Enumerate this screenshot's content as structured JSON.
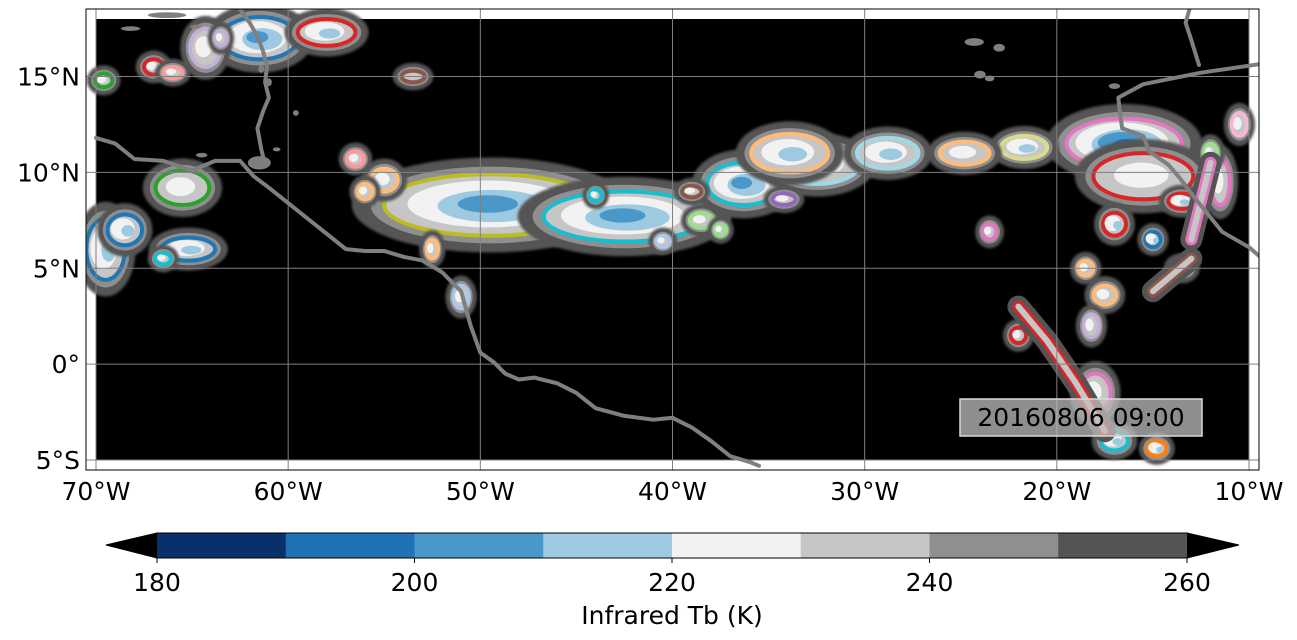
{
  "map": {
    "timestamp": "20160806 09:00",
    "background_color": "#000000",
    "coastline_color": "#7f7f7f",
    "grid_color": "#808080",
    "lon_ticks": [
      {
        "value": -70,
        "label": "70°W"
      },
      {
        "value": -60,
        "label": "60°W"
      },
      {
        "value": -50,
        "label": "50°W"
      },
      {
        "value": -40,
        "label": "40°W"
      },
      {
        "value": -30,
        "label": "30°W"
      },
      {
        "value": -20,
        "label": "20°W"
      },
      {
        "value": -10,
        "label": "10°W"
      }
    ],
    "lat_ticks": [
      {
        "value": 15,
        "label": "15°N"
      },
      {
        "value": 10,
        "label": "10°N"
      },
      {
        "value": 5,
        "label": "5°N"
      },
      {
        "value": 0,
        "label": "0°"
      },
      {
        "value": -5,
        "label": "5°S"
      }
    ],
    "extent": {
      "lon_min": -70,
      "lon_max": -10,
      "lat_min": -5,
      "lat_max": 18
    }
  },
  "colorbar": {
    "label": "Infrared Tb (K)",
    "levels": [
      180,
      190,
      200,
      210,
      220,
      230,
      240,
      250,
      260
    ],
    "colors": [
      "#08306b",
      "#2171b5",
      "#4a98c9",
      "#9ecae1",
      "#f2f2f2",
      "#c6c6c6",
      "#8f8f8f",
      "#545454"
    ],
    "under_color": "#000000",
    "over_color": "#000000",
    "tick_labels": [
      {
        "value": 180,
        "label": "180"
      },
      {
        "value": 200,
        "label": "200"
      },
      {
        "value": 220,
        "label": "220"
      },
      {
        "value": 240,
        "label": "240"
      },
      {
        "value": 260,
        "label": "260"
      }
    ]
  },
  "systems": [
    {
      "lon": -49.5,
      "lat": 8.3,
      "rx": 5.5,
      "ry": 1.6,
      "outline": "#bcbd22",
      "core": 200
    },
    {
      "lon": -42.5,
      "lat": 7.7,
      "rx": 4.2,
      "ry": 1.3,
      "outline": "#17becf",
      "core": 205
    },
    {
      "lon": -36.3,
      "lat": 9.4,
      "rx": 1.9,
      "ry": 1.1,
      "outline": "#17becf",
      "core": 200
    },
    {
      "lon": -32.5,
      "lat": 10.4,
      "rx": 2.2,
      "ry": 1.0,
      "outline": "#9edae5",
      "core": 215
    },
    {
      "lon": -33.9,
      "lat": 11.0,
      "rx": 2.0,
      "ry": 1.0,
      "outline": "#ffbb78",
      "core": 215
    },
    {
      "lon": -28.8,
      "lat": 11.0,
      "rx": 1.6,
      "ry": 0.8,
      "outline": "#9edae5",
      "core": 210
    },
    {
      "lon": -16.5,
      "lat": 11.5,
      "rx": 3.0,
      "ry": 1.3,
      "outline": "#e377c2",
      "core": 195
    },
    {
      "lon": -15.5,
      "lat": 9.8,
      "rx": 2.6,
      "ry": 1.2,
      "outline": "#d62728",
      "core": 220
    },
    {
      "lon": -21.7,
      "lat": 11.3,
      "rx": 1.2,
      "ry": 0.6,
      "outline": "#dbdb8d",
      "core": 215
    },
    {
      "lon": -24.8,
      "lat": 11.0,
      "rx": 1.3,
      "ry": 0.6,
      "outline": "#ffbb78",
      "core": 220
    },
    {
      "lon": -65.5,
      "lat": 9.2,
      "rx": 1.4,
      "ry": 0.9,
      "outline": "#2ca02c",
      "core": 220
    },
    {
      "lon": -65.2,
      "lat": 6.0,
      "rx": 1.4,
      "ry": 0.6,
      "outline": "#1f77b4",
      "core": 215
    },
    {
      "lon": -69.5,
      "lat": 6.0,
      "rx": 1.0,
      "ry": 1.6,
      "outline": "#1f77b4",
      "core": 210
    },
    {
      "lon": -68.5,
      "lat": 7.0,
      "rx": 0.9,
      "ry": 0.8,
      "outline": "#1f77b4",
      "core": 215
    },
    {
      "lon": -61.5,
      "lat": 17.0,
      "rx": 2.0,
      "ry": 1.1,
      "outline": "#1f77b4",
      "core": 205
    },
    {
      "lon": -58.0,
      "lat": 17.3,
      "rx": 1.5,
      "ry": 0.7,
      "outline": "#d62728",
      "core": 210
    },
    {
      "lon": -64.3,
      "lat": 16.5,
      "rx": 0.8,
      "ry": 1.0,
      "outline": "#c5b0d5",
      "core": 225
    },
    {
      "lon": -55.0,
      "lat": 9.6,
      "rx": 0.7,
      "ry": 0.6,
      "outline": "#ffbb78",
      "core": 225
    },
    {
      "lon": -56.5,
      "lat": 10.7,
      "rx": 0.45,
      "ry": 0.4,
      "outline": "#ff9896",
      "core": 225
    },
    {
      "lon": -38.5,
      "lat": 7.5,
      "rx": 0.6,
      "ry": 0.4,
      "outline": "#98df8a",
      "core": 225
    },
    {
      "lon": -34.2,
      "lat": 8.6,
      "rx": 0.6,
      "ry": 0.3,
      "outline": "#9467bd",
      "core": 225
    },
    {
      "lon": -17.0,
      "lat": 7.3,
      "rx": 0.6,
      "ry": 0.6,
      "outline": "#d62728",
      "core": 215
    },
    {
      "lon": -13.5,
      "lat": 8.5,
      "rx": 0.7,
      "ry": 0.4,
      "outline": "#d62728",
      "core": 215
    },
    {
      "lon": -11.5,
      "lat": 9.5,
      "rx": 0.5,
      "ry": 1.2,
      "outline": "#e377c2",
      "core": 225
    },
    {
      "lon": -18.0,
      "lat": -1.5,
      "rx": 0.8,
      "ry": 1.0,
      "outline": "#e377c2",
      "core": 225
    },
    {
      "lon": -17.0,
      "lat": -4.0,
      "rx": 0.7,
      "ry": 0.5,
      "outline": "#17becf",
      "core": 215
    },
    {
      "lon": -14.8,
      "lat": -4.4,
      "rx": 0.5,
      "ry": 0.4,
      "outline": "#ff7f0e",
      "core": 215
    },
    {
      "lon": -17.5,
      "lat": 3.6,
      "rx": 0.6,
      "ry": 0.5,
      "outline": "#ffbb78",
      "core": 225
    },
    {
      "lon": -18.5,
      "lat": 5.0,
      "rx": 0.4,
      "ry": 0.4,
      "outline": "#ffbb78",
      "core": 225
    },
    {
      "lon": -18.2,
      "lat": 2.0,
      "rx": 0.4,
      "ry": 0.6,
      "outline": "#c5b0d5",
      "core": 225
    },
    {
      "lon": -15.0,
      "lat": 6.5,
      "rx": 0.4,
      "ry": 0.4,
      "outline": "#1f77b4",
      "core": 215
    },
    {
      "lon": -23.5,
      "lat": 6.9,
      "rx": 0.35,
      "ry": 0.4,
      "outline": "#e377c2",
      "core": 225
    },
    {
      "lon": -52.5,
      "lat": 6.0,
      "rx": 0.3,
      "ry": 0.5,
      "outline": "#ffbb78",
      "core": 225
    },
    {
      "lon": -40.5,
      "lat": 6.4,
      "rx": 0.35,
      "ry": 0.3,
      "outline": "#aec7e8",
      "core": 225
    },
    {
      "lon": -67.0,
      "lat": 15.5,
      "rx": 0.5,
      "ry": 0.4,
      "outline": "#d62728",
      "core": 225
    },
    {
      "lon": -66.0,
      "lat": 15.2,
      "rx": 0.5,
      "ry": 0.3,
      "outline": "#ff9896",
      "core": 225
    },
    {
      "lon": -69.6,
      "lat": 14.8,
      "rx": 0.45,
      "ry": 0.35,
      "outline": "#2ca02c",
      "core": 225
    },
    {
      "lon": -56.0,
      "lat": 9.0,
      "rx": 0.4,
      "ry": 0.4,
      "outline": "#ffbb78",
      "core": 225
    },
    {
      "lon": -39.0,
      "lat": 9.0,
      "rx": 0.5,
      "ry": 0.3,
      "outline": "#8c564b",
      "core": 225
    },
    {
      "lon": -51.0,
      "lat": 3.5,
      "rx": 0.4,
      "ry": 0.6,
      "outline": "#aec7e8",
      "core": 225
    },
    {
      "lon": -66.5,
      "lat": 5.5,
      "rx": 0.4,
      "ry": 0.3,
      "outline": "#17becf",
      "core": 220
    },
    {
      "lon": -37.5,
      "lat": 7.0,
      "rx": 0.3,
      "ry": 0.3,
      "outline": "#98df8a",
      "core": 225
    },
    {
      "lon": -12.0,
      "lat": 11.0,
      "rx": 0.35,
      "ry": 0.5,
      "outline": "#98df8a",
      "core": 225
    },
    {
      "lon": -13.5,
      "lat": 5.0,
      "rx": 0.5,
      "ry": 0.35,
      "outline": "#98df8a",
      "core": 225
    },
    {
      "lon": -22.0,
      "lat": 1.5,
      "rx": 0.4,
      "ry": 0.4,
      "outline": "#d62728",
      "core": 225
    },
    {
      "lon": -10.5,
      "lat": 12.5,
      "rx": 0.4,
      "ry": 0.6,
      "outline": "#f7b6d2",
      "core": 225
    },
    {
      "lon": -63.5,
      "lat": 17.0,
      "rx": 0.3,
      "ry": 0.4,
      "outline": "#c5b0d5",
      "core": 225
    },
    {
      "lon": -44.0,
      "lat": 8.8,
      "rx": 0.3,
      "ry": 0.3,
      "outline": "#17becf",
      "core": 225
    },
    {
      "lon": -53.5,
      "lat": 15.0,
      "rx": 0.6,
      "ry": 0.3,
      "outline": "#8c564b",
      "core": 240
    }
  ],
  "streaks": [
    {
      "points": [
        [
          -22.0,
          3.0
        ],
        [
          -20.5,
          1.2
        ],
        [
          -19.0,
          -1.0
        ],
        [
          -17.5,
          -3.5
        ]
      ],
      "outline": "#d62728"
    },
    {
      "points": [
        [
          -12.0,
          10.5
        ],
        [
          -12.5,
          8.5
        ],
        [
          -13.0,
          6.5
        ]
      ],
      "outline": "#e377c2"
    },
    {
      "points": [
        [
          -13.0,
          5.5
        ],
        [
          -15.0,
          3.8
        ]
      ],
      "outline": "#8c564b"
    }
  ],
  "coastlines": [
    [
      [
        -70,
        11.8
      ],
      [
        -69,
        11.5
      ],
      [
        -68,
        10.7
      ],
      [
        -66.5,
        10.6
      ],
      [
        -65,
        10.1
      ],
      [
        -63.8,
        10.6
      ],
      [
        -62.5,
        10.6
      ],
      [
        -61.8,
        9.8
      ],
      [
        -61,
        9.2
      ],
      [
        -60,
        8.4
      ],
      [
        -59,
        7.6
      ],
      [
        -58,
        6.8
      ],
      [
        -57,
        6.0
      ],
      [
        -56,
        5.9
      ],
      [
        -55,
        5.9
      ],
      [
        -54,
        5.6
      ],
      [
        -53,
        5.4
      ],
      [
        -52,
        4.8
      ],
      [
        -51.5,
        4.3
      ],
      [
        -51,
        3.8
      ],
      [
        -50.5,
        2.0
      ],
      [
        -50,
        0.6
      ],
      [
        -49.3,
        0.1
      ],
      [
        -48.7,
        -0.5
      ],
      [
        -48,
        -0.8
      ],
      [
        -47.2,
        -0.7
      ],
      [
        -46,
        -1.0
      ],
      [
        -45,
        -1.5
      ],
      [
        -44,
        -2.3
      ],
      [
        -42.5,
        -2.7
      ],
      [
        -41,
        -2.9
      ],
      [
        -40,
        -2.8
      ],
      [
        -39,
        -3.3
      ],
      [
        -38,
        -4.0
      ],
      [
        -37,
        -4.8
      ],
      [
        -36,
        -5.1
      ],
      [
        -35.5,
        -5.3
      ]
    ],
    [
      [
        -62.5,
        18.5
      ],
      [
        -62,
        17.8
      ],
      [
        -61.6,
        17.1
      ],
      [
        -61.3,
        16.3
      ],
      [
        -61.1,
        15.5
      ],
      [
        -61.2,
        14.7
      ],
      [
        -61,
        13.9
      ],
      [
        -61.3,
        13.2
      ],
      [
        -61.6,
        12.3
      ],
      [
        -61.4,
        11.2
      ],
      [
        -61.2,
        10.4
      ]
    ],
    [
      [
        -7.0,
        16.0
      ],
      [
        -12.5,
        15.2
      ],
      [
        -15.5,
        14.6
      ],
      [
        -16.8,
        13.9
      ],
      [
        -16.7,
        13.0
      ],
      [
        -16.6,
        12.3
      ],
      [
        -15.5,
        11.9
      ],
      [
        -15.2,
        11.1
      ],
      [
        -14.2,
        10.4
      ],
      [
        -13.6,
        9.7
      ],
      [
        -13.0,
        8.9
      ],
      [
        -12.2,
        7.9
      ],
      [
        -11.4,
        6.9
      ],
      [
        -10.0,
        6.1
      ],
      [
        -8.5,
        4.8
      ]
    ],
    [
      [
        -13.1,
        18.5
      ],
      [
        -13.3,
        17.8
      ],
      [
        -13.0,
        16.9
      ],
      [
        -12.6,
        15.6
      ]
    ]
  ],
  "islands": [
    [
      -66.3,
      18.2,
      1.0,
      0.15
    ],
    [
      -68.2,
      17.5,
      0.5,
      0.12
    ],
    [
      -64.8,
      17.6,
      0.3,
      0.1
    ],
    [
      -64.5,
      10.9,
      0.3,
      0.12
    ],
    [
      -61.5,
      10.5,
      0.6,
      0.35
    ],
    [
      -60.6,
      11.2,
      0.2,
      0.1
    ],
    [
      -61.0,
      14.7,
      0.15,
      0.2
    ],
    [
      -61.4,
      15.4,
      0.15,
      0.2
    ],
    [
      -59.6,
      13.1,
      0.15,
      0.15
    ],
    [
      -24.3,
      16.8,
      0.5,
      0.2
    ],
    [
      -23.0,
      16.5,
      0.3,
      0.2
    ],
    [
      -24.0,
      15.1,
      0.3,
      0.2
    ],
    [
      -23.5,
      14.9,
      0.25,
      0.15
    ],
    [
      -17.0,
      14.5,
      0.3,
      0.15
    ]
  ]
}
